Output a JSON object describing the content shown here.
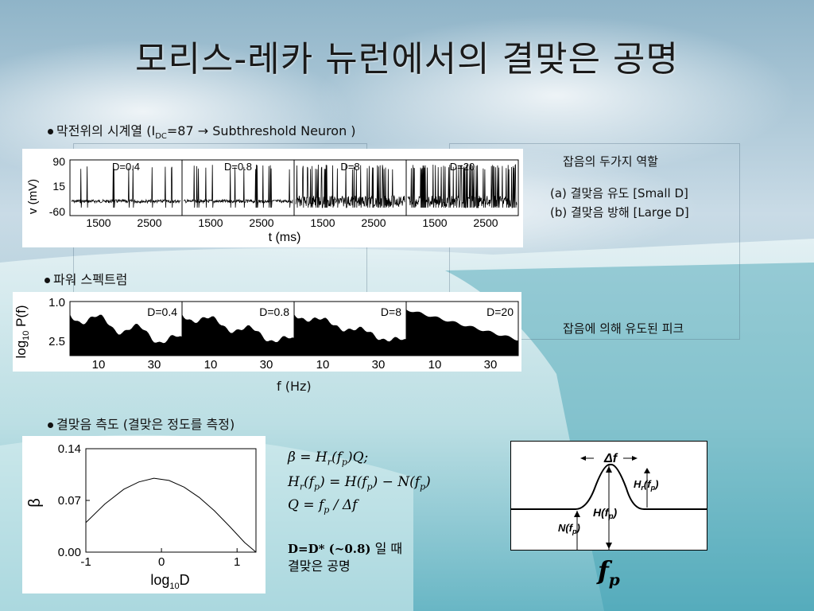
{
  "title": "모리스-레카 뉴런에서의 결맞은 공명",
  "section1": {
    "label_pre": "막전위의 시계열 (I",
    "label_sub": "DC",
    "label_post": "=87 → Subthreshold Neuron )",
    "ylabel": "v (mV)",
    "xlabel": "t (ms)",
    "yticks": [
      "90",
      "15",
      "-60"
    ],
    "xticks": [
      "1500",
      "2500"
    ],
    "panels": [
      "D=0.4",
      "D=0.8",
      "D=8",
      "D=20"
    ]
  },
  "roles": {
    "heading": "잡음의 두가지 역할",
    "item_a": "(a)  결맞음  유도 [Small D]",
    "item_b": "(b)  결맞음  방해 [Large D]"
  },
  "section2": {
    "label": "파워 스펙트럼",
    "ylabel_main": "log",
    "ylabel_sub": "10",
    "ylabel_post": " P(f)",
    "yticks": [
      "1.0",
      "2.5"
    ],
    "xticks": [
      "10",
      "30"
    ],
    "xlabel": "f (Hz)",
    "panels": [
      "D=0.4",
      "D=0.8",
      "D=8",
      "D=20"
    ],
    "peak_note": "잡음에 의해 유도된 피크"
  },
  "section3": {
    "label": "결맞음 측도 (결맞은 정도를 측정)"
  },
  "chart_data": {
    "type": "line",
    "x": [
      -1.0,
      -0.75,
      -0.5,
      -0.3,
      -0.1,
      0.1,
      0.3,
      0.5,
      0.7,
      0.9,
      1.1,
      1.25
    ],
    "series": [
      {
        "values": [
          0.04,
          0.065,
          0.085,
          0.095,
          0.1,
          0.097,
          0.088,
          0.074,
          0.056,
          0.035,
          0.013,
          0.0
        ]
      }
    ],
    "xlim": [
      -1.0,
      1.25
    ],
    "ylim": [
      0.0,
      0.14
    ],
    "xticks": [
      -1,
      0,
      1
    ],
    "yticks": [
      0.0,
      0.07,
      0.14
    ],
    "ytick_labels": [
      "0.00",
      "0.07",
      "0.14"
    ],
    "xtick_labels": [
      "-1",
      "0",
      "1"
    ],
    "ylabel": "β",
    "xlabel_main": "log",
    "xlabel_sub": "10",
    "xlabel_post": "D"
  },
  "equations": {
    "eq1": "β = H_r(f_p)Q;",
    "eq2": "H_r(f_p) = H(f_p) − N(f_p)",
    "eq3": "Q = f_p / Δf",
    "note_bold": "D=D* (~0.8)",
    "note_kr1": " 일 때",
    "note_kr2": "결맞은 공명"
  },
  "schematic": {
    "delta_f": "Δf",
    "hr": "H_r(f_p)",
    "h": "H(f_p)",
    "n": "N(f_p)",
    "fp": "f_p"
  }
}
